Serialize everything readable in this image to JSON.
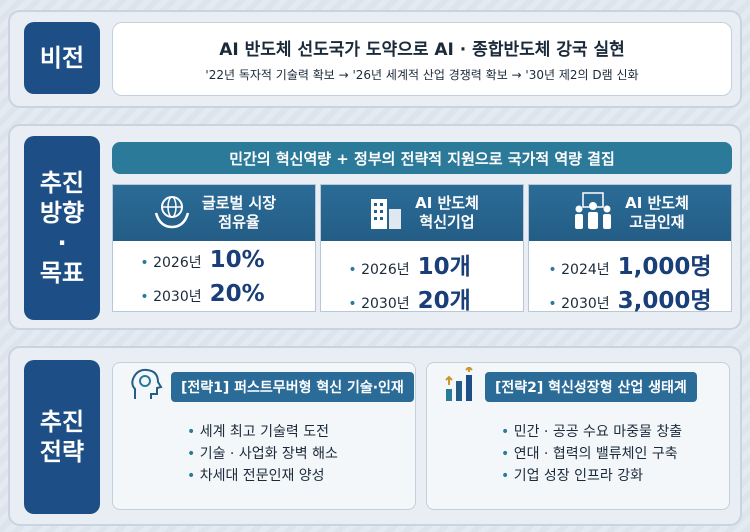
{
  "vision": {
    "label": "비전",
    "title": "AI 반도체 선도국가 도약으로 AI · 종합반도체 강국 실현",
    "subtitle": "'22년 독자적 기술력 확보 → '26년 세계적 산업 경쟁력 확보 → '30년 제2의 D램 신화"
  },
  "direction": {
    "label": [
      "추진",
      "방향",
      "·",
      "목표"
    ],
    "banner": "민간의 혁신역량 + 정부의 전략적 지원으로 국가적 역량 결집",
    "goals": [
      {
        "title": [
          "글로벌 시장",
          "점유율"
        ],
        "items": [
          {
            "year": "2026년",
            "value": "10%"
          },
          {
            "year": "2030년",
            "value": "20%"
          }
        ]
      },
      {
        "title": [
          "AI 반도체",
          "혁신기업"
        ],
        "items": [
          {
            "year": "2026년",
            "value": "10개"
          },
          {
            "year": "2030년",
            "value": "20개"
          }
        ]
      },
      {
        "title": [
          "AI 반도체",
          "고급인재"
        ],
        "items": [
          {
            "year": "2024년",
            "value": "1,000명"
          },
          {
            "year": "2030년",
            "value": "3,000명"
          }
        ]
      }
    ]
  },
  "strategy": {
    "label": [
      "추진",
      "전략"
    ],
    "cards": [
      {
        "title": "[전략1] 퍼스트무버형 혁신 기술·인재",
        "items": [
          "세계 최고 기술력 도전",
          "기술 · 사업화 장벽 해소",
          "차세대 전문인재 양성"
        ]
      },
      {
        "title": "[전략2] 혁신성장형 산업 생태계",
        "items": [
          "민간 · 공공 수요 마중물 창출",
          "연대 · 협력의 밸류체인 구축",
          "기업 성장 인프라 강화"
        ]
      }
    ]
  }
}
